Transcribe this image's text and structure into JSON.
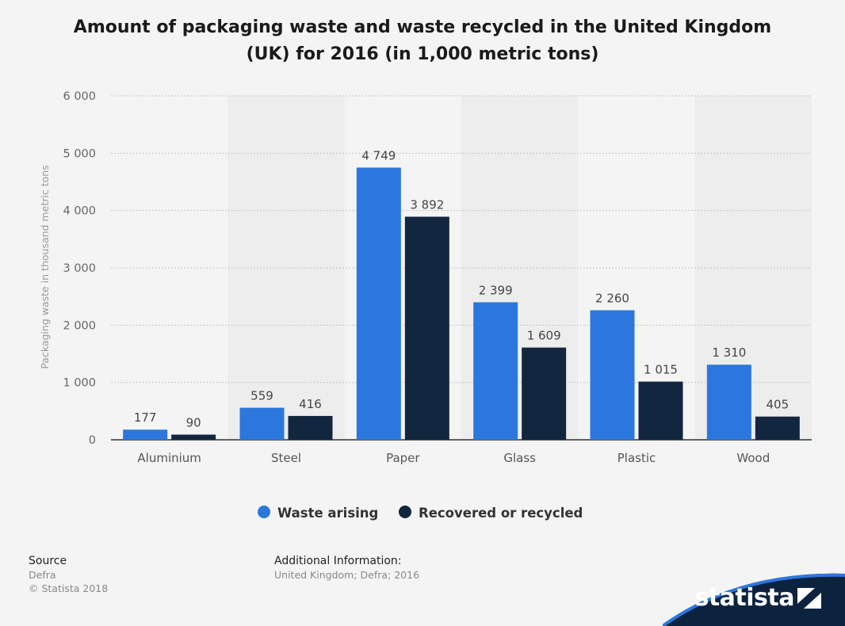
{
  "title_line1": "Amount of packaging waste and waste recycled in the United Kingdom",
  "title_line2": "(UK) for 2016 (in 1,000 metric tons)",
  "colors": {
    "waste": "#2c77dd",
    "recycled": "#13263f",
    "background": "#f4f4f4",
    "band": "#ededed"
  },
  "chart_data": {
    "type": "bar",
    "categories": [
      "Aluminium",
      "Steel",
      "Paper",
      "Glass",
      "Plastic",
      "Wood"
    ],
    "series": [
      {
        "name": "Waste arising",
        "values": [
          177,
          559,
          4749,
          2399,
          2260,
          1310
        ],
        "labels": [
          "177",
          "559",
          "4 749",
          "2 399",
          "2 260",
          "1 310"
        ]
      },
      {
        "name": "Recovered or recycled",
        "values": [
          90,
          416,
          3892,
          1609,
          1015,
          405
        ],
        "labels": [
          "90",
          "416",
          "3 892",
          "1 609",
          "1 015",
          "405"
        ]
      }
    ],
    "ylabel": "Packaging waste in thousand metric tons",
    "ylim": [
      0,
      6000
    ],
    "yticks": [
      0,
      1000,
      2000,
      3000,
      4000,
      5000,
      6000
    ],
    "ytick_labels": [
      "0",
      "1 000",
      "2 000",
      "3 000",
      "4 000",
      "5 000",
      "6 000"
    ],
    "grid": true,
    "legend_position": "bottom"
  },
  "footer": {
    "source_heading": "Source",
    "source_name": "Defra",
    "copyright": "© Statista 2018",
    "additional_heading": "Additional Information:",
    "additional_text": "United Kingdom; Defra; 2016"
  },
  "brand": {
    "name": "statista",
    "icon": "statista-logo-icon"
  }
}
